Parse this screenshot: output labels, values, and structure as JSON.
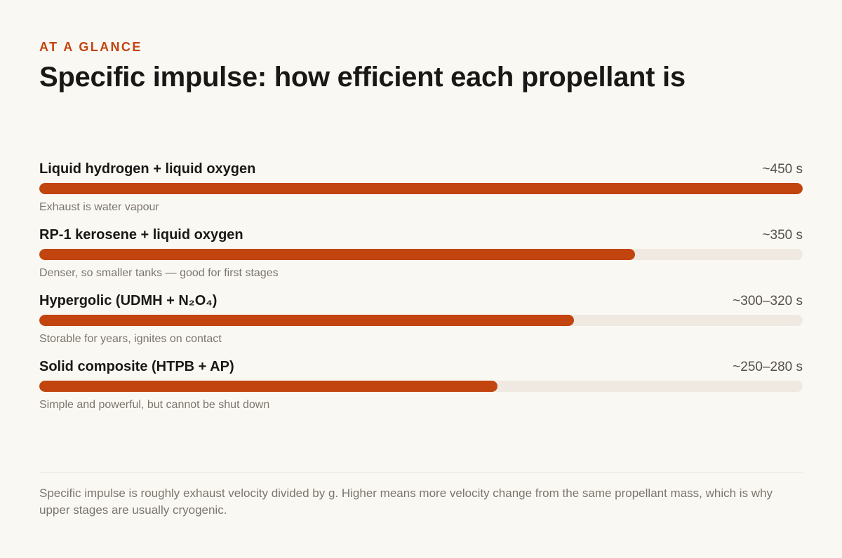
{
  "header": {
    "eyebrow": "AT A GLANCE",
    "title": "Specific impulse: how efficient each propellant is"
  },
  "chart_data": {
    "type": "bar",
    "orientation": "horizontal",
    "max_value": 450,
    "categories": [
      "Liquid hydrogen + liquid oxygen",
      "RP-1 kerosene + liquid oxygen",
      "Hypergolic (UDMH + N₂O₄)",
      "Solid composite (HTPB + AP)"
    ],
    "values": [
      450,
      351,
      315,
      270
    ],
    "value_labels": [
      "~450 s",
      "~350 s",
      "~300–320 s",
      "~250–280 s"
    ],
    "notes": [
      "Exhaust is water vapour",
      "Denser, so smaller tanks — good for first stages",
      "Storable for years, ignites on contact",
      "Simple and powerful, but cannot be shut down"
    ],
    "grid": false,
    "colors": {
      "bar": "#c2440e",
      "track": "#efe9e1"
    }
  },
  "footer": {
    "note": "Specific impulse is roughly exhaust velocity divided by g. Higher means more velocity change from the same propellant mass, which is why upper stages are usually cryogenic."
  }
}
